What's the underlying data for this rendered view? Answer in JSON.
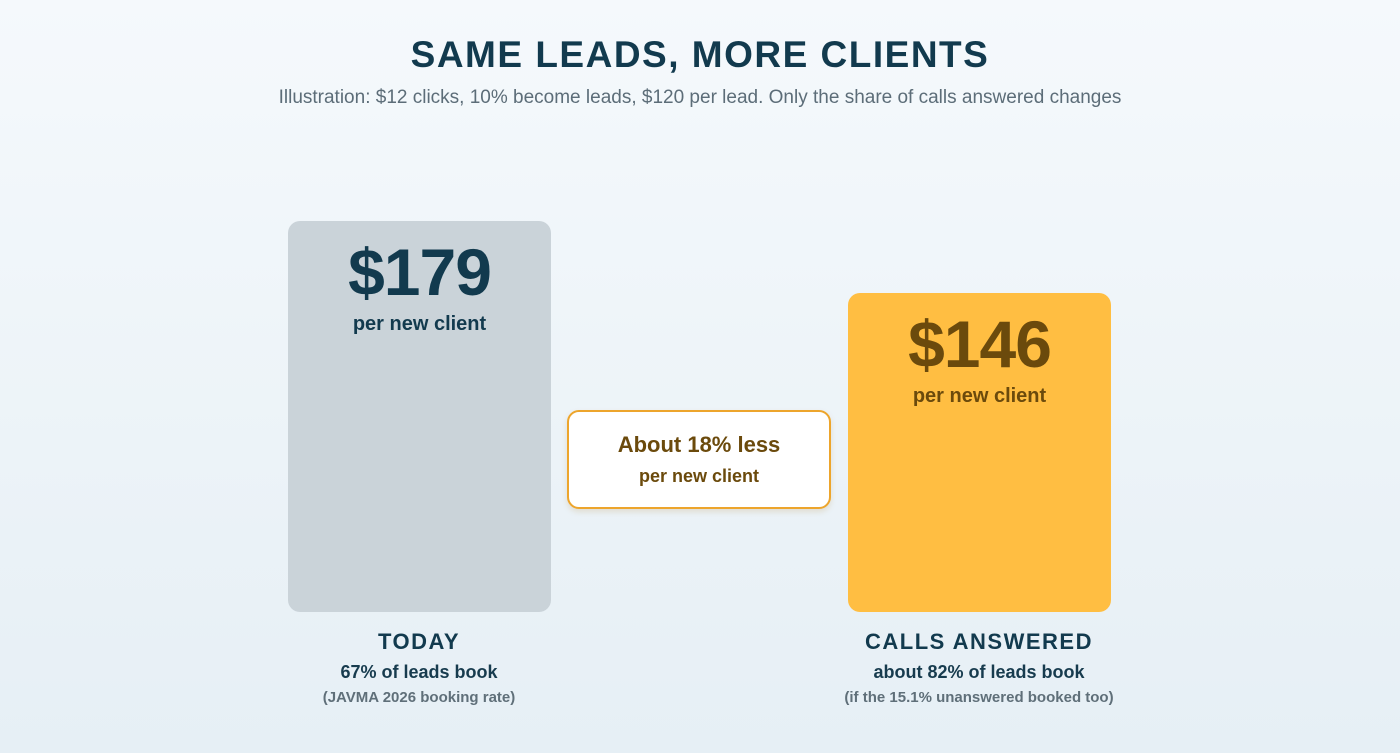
{
  "title": "SAME LEADS, MORE CLIENTS",
  "subtitle": "Illustration: $12 clicks, 10% become leads, $120 per lead. Only the share of calls answered changes",
  "callout": {
    "main": "About 18% less",
    "sub": "per new client"
  },
  "chart_data": {
    "type": "bar",
    "title": "SAME LEADS, MORE CLIENTS",
    "subtitle": "Illustration: $12 clicks, 10% become leads, $120 per lead. Only the share of calls answered changes",
    "categories": [
      "TODAY",
      "CALLS ANSWERED"
    ],
    "values": [
      179,
      146
    ],
    "ylim": [
      0,
      179
    ],
    "grid": false,
    "unit_label": "per new client",
    "colors": [
      "#cad3d9",
      "#ffbe42"
    ],
    "bars": [
      {
        "category": "TODAY",
        "value": 179,
        "value_label": "$179",
        "unit_label": "per new client",
        "description": "67% of leads book",
        "note": "(JAVMA 2026 booking rate)",
        "color": "#cad3d9"
      },
      {
        "category": "CALLS ANSWERED",
        "value": 146,
        "value_label": "$146",
        "unit_label": "per new client",
        "description": "about 82% of leads book",
        "note": "(if the 15.1% unanswered booked too)",
        "color": "#ffbe42"
      }
    ]
  }
}
